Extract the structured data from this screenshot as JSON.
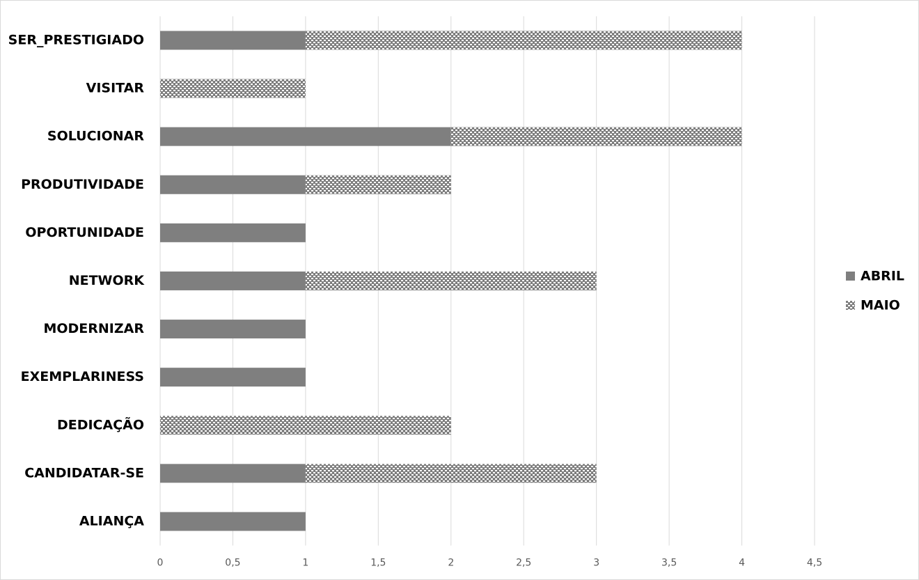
{
  "chart_data": {
    "type": "stacked_barh",
    "categories": [
      "SER_PRESTIGIADO",
      "VISITAR",
      "SOLUCIONAR",
      "PRODUTIVIDADE",
      "OPORTUNIDADE",
      "NETWORK",
      "MODERNIZAR",
      "EXEMPLARINESS",
      "DEDICAÇÃO",
      "CANDIDATAR-SE",
      "ALIANÇA"
    ],
    "series": [
      {
        "name": "ABRIL",
        "color": "#7f7f7f",
        "pattern": "solid",
        "values": [
          1,
          0,
          2,
          1,
          1,
          1,
          1,
          1,
          0,
          1,
          1
        ]
      },
      {
        "name": "MAIO",
        "color": "#7f7f7f",
        "pattern": "checker",
        "values": [
          3,
          1,
          2,
          1,
          0,
          2,
          0,
          0,
          2,
          2,
          0
        ]
      }
    ],
    "xlim": [
      0,
      4.5
    ],
    "xticks": [
      0,
      {
        "value": 0.5,
        "label": "0,5"
      },
      1,
      {
        "value": 1.5,
        "label": "1,5"
      },
      2,
      {
        "value": 2.5,
        "label": "2,5"
      },
      3,
      {
        "value": 3.5,
        "label": "3,5"
      },
      4,
      {
        "value": 4.5,
        "label": "4,5"
      }
    ],
    "grid": true,
    "legend": "right"
  }
}
